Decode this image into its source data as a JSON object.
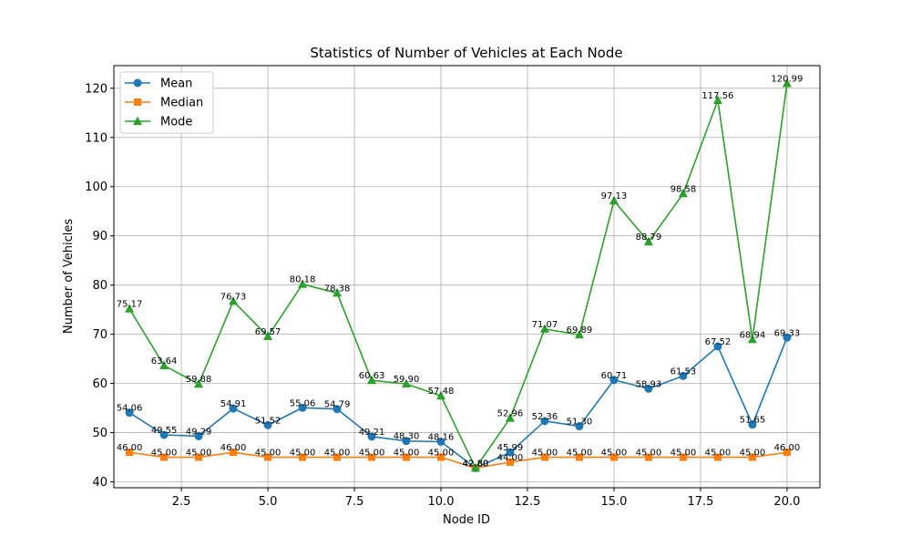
{
  "chart_data": {
    "type": "line",
    "title": "Statistics of Number of Vehicles at Each Node",
    "xlabel": "Node ID",
    "ylabel": "Number of Vehicles",
    "xlim": [
      0.55,
      20.95
    ],
    "ylim": [
      38.8,
      124.6
    ],
    "xticks": [
      2.5,
      5.0,
      7.5,
      10.0,
      12.5,
      15.0,
      17.5,
      20.0
    ],
    "xtick_labels": [
      "2.5",
      "5.0",
      "7.5",
      "10.0",
      "12.5",
      "15.0",
      "17.5",
      "20.0"
    ],
    "yticks": [
      40,
      50,
      60,
      70,
      80,
      90,
      100,
      110,
      120
    ],
    "ytick_labels": [
      "40",
      "50",
      "60",
      "70",
      "80",
      "90",
      "100",
      "110",
      "120"
    ],
    "grid": true,
    "legend_position": "top-left",
    "x": [
      1,
      2,
      3,
      4,
      5,
      6,
      7,
      8,
      9,
      10,
      11,
      12,
      13,
      14,
      15,
      16,
      17,
      18,
      19,
      20
    ],
    "series": [
      {
        "name": "Mean",
        "color": "#1f77b4",
        "marker": "circle",
        "values": [
          54.06,
          49.55,
          49.29,
          54.91,
          51.52,
          55.06,
          54.79,
          49.21,
          48.3,
          48.16,
          42.8,
          45.99,
          52.36,
          51.3,
          60.71,
          58.93,
          61.53,
          67.52,
          51.65,
          69.33
        ],
        "labels": [
          "54.06",
          "49.55",
          "49.29",
          "54.91",
          "51.52",
          "55.06",
          "54.79",
          "49.21",
          "48.30",
          "48.16",
          "42.80",
          "45.99",
          "52.36",
          "51.30",
          "60.71",
          "58.93",
          "61.53",
          "67.52",
          "51.65",
          "69.33"
        ]
      },
      {
        "name": "Median",
        "color": "#ff7f0e",
        "marker": "square",
        "values": [
          46,
          45,
          45,
          46,
          45,
          45,
          45,
          45,
          45,
          45,
          42.8,
          44,
          45,
          45,
          45,
          45,
          45,
          45,
          45,
          46
        ],
        "labels": [
          "46.00",
          "45.00",
          "45.00",
          "46.00",
          "45.00",
          "45.00",
          "45.00",
          "45.00",
          "45.00",
          "45.00",
          "42.80",
          "44.00",
          "45.00",
          "45.00",
          "45.00",
          "45.00",
          "45.00",
          "45.00",
          "45.00",
          "46.00"
        ]
      },
      {
        "name": "Mode",
        "color": "#2ca02c",
        "marker": "triangle",
        "values": [
          75.17,
          63.64,
          59.88,
          76.73,
          69.57,
          80.18,
          78.38,
          60.63,
          59.9,
          57.48,
          42.8,
          52.96,
          71.07,
          69.89,
          97.13,
          88.79,
          98.58,
          117.56,
          68.94,
          120.99
        ],
        "labels": [
          "75.17",
          "63.64",
          "59.88",
          "76.73",
          "69.57",
          "80.18",
          "78.38",
          "60.63",
          "59.90",
          "57.48",
          "42.80",
          "52.96",
          "71.07",
          "69.89",
          "97.13",
          "88.79",
          "98.58",
          "117.56",
          "68.94",
          "120.99"
        ]
      }
    ]
  }
}
